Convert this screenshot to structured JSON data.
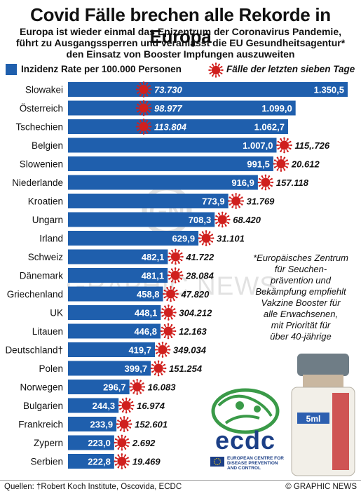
{
  "title": "Covid Fälle brechen alle Rekorde in Europa",
  "subtitle": [
    "Europa ist wieder einmal das Epizentrum der Coronavirus Pandemie,",
    "führt zu Ausgangssperren und veranlasst die EU Gesundheitsagentur*",
    "den Einsatz von Booster Impfungen auszuweiten"
  ],
  "legend": {
    "incidence": "Inzidenz Rate per 100.000 Personen",
    "cases": "Fälle der letzten sieben Tage"
  },
  "note": [
    "*Europäisches Zentrum",
    "für Seuchen-",
    "prävention und",
    "Bekämpfung empfiehlt",
    "Vakzine Booster für",
    "alle Erwachsenen,",
    "mit Priorität für",
    "über 40-jährige"
  ],
  "ecdc": {
    "logo_text": "ecdc",
    "lines": [
      "EUROPEAN CENTRE FOR",
      "DISEASE PREVENTION",
      "AND CONTROL"
    ]
  },
  "vial_label": "5ml",
  "watermark": "GRAPHIC NEWS",
  "source": "Quellen: †Robert Koch Institute, Oscovida, ECDC",
  "copyright": "© GRAPHIC NEWS",
  "colors": {
    "bar": "#1f5fad",
    "virus": "#d0201e",
    "ecdc": "#1c3f86"
  },
  "chart_data": {
    "type": "bar",
    "orientation": "horizontal",
    "categories": [
      "Slowakei",
      "Österreich",
      "Tschechien",
      "Belgien",
      "Slowenien",
      "Niederlande",
      "Kroatien",
      "Ungarn",
      "Irland",
      "Schweiz",
      "Dänemark",
      "Griechenland",
      "UK",
      "Litauen",
      "Deutschland†",
      "Polen",
      "Norwegen",
      "Bulgarien",
      "Frankreich",
      "Zypern",
      "Serbien"
    ],
    "series": [
      {
        "name": "Inzidenz Rate per 100.000 Personen",
        "values": [
          1350.5,
          1099.0,
          1062.7,
          1007.0,
          991.5,
          916.9,
          773.9,
          708.3,
          629.9,
          482.1,
          481.1,
          458.8,
          448.1,
          446.8,
          419.7,
          399.7,
          296.7,
          244.3,
          233.9,
          223.0,
          222.8
        ],
        "labels": [
          "1.350,5",
          "1.099,0",
          "1.062,7",
          "1.007,0",
          "991,5",
          "916,9",
          "773,9",
          "708,3",
          "629,9",
          "482,1",
          "481,1",
          "458,8",
          "448,1",
          "446,8",
          "419,7",
          "399,7",
          "296,7",
          "244,3",
          "233,9",
          "223,0",
          "222,8"
        ]
      },
      {
        "name": "Fälle der letzten sieben Tage",
        "labels": [
          "73.730",
          "98.977",
          "113.804",
          "115,.726",
          "20.612",
          "157.118",
          "31.769",
          "68.420",
          "31.101",
          "41.722",
          "28.084",
          "47.820",
          "304.212",
          "12.163",
          "349.034",
          "151.254",
          "16.083",
          "16.974",
          "152.601",
          "2.692",
          "19.469"
        ]
      }
    ],
    "xlim": [
      0,
      1350.5
    ]
  }
}
